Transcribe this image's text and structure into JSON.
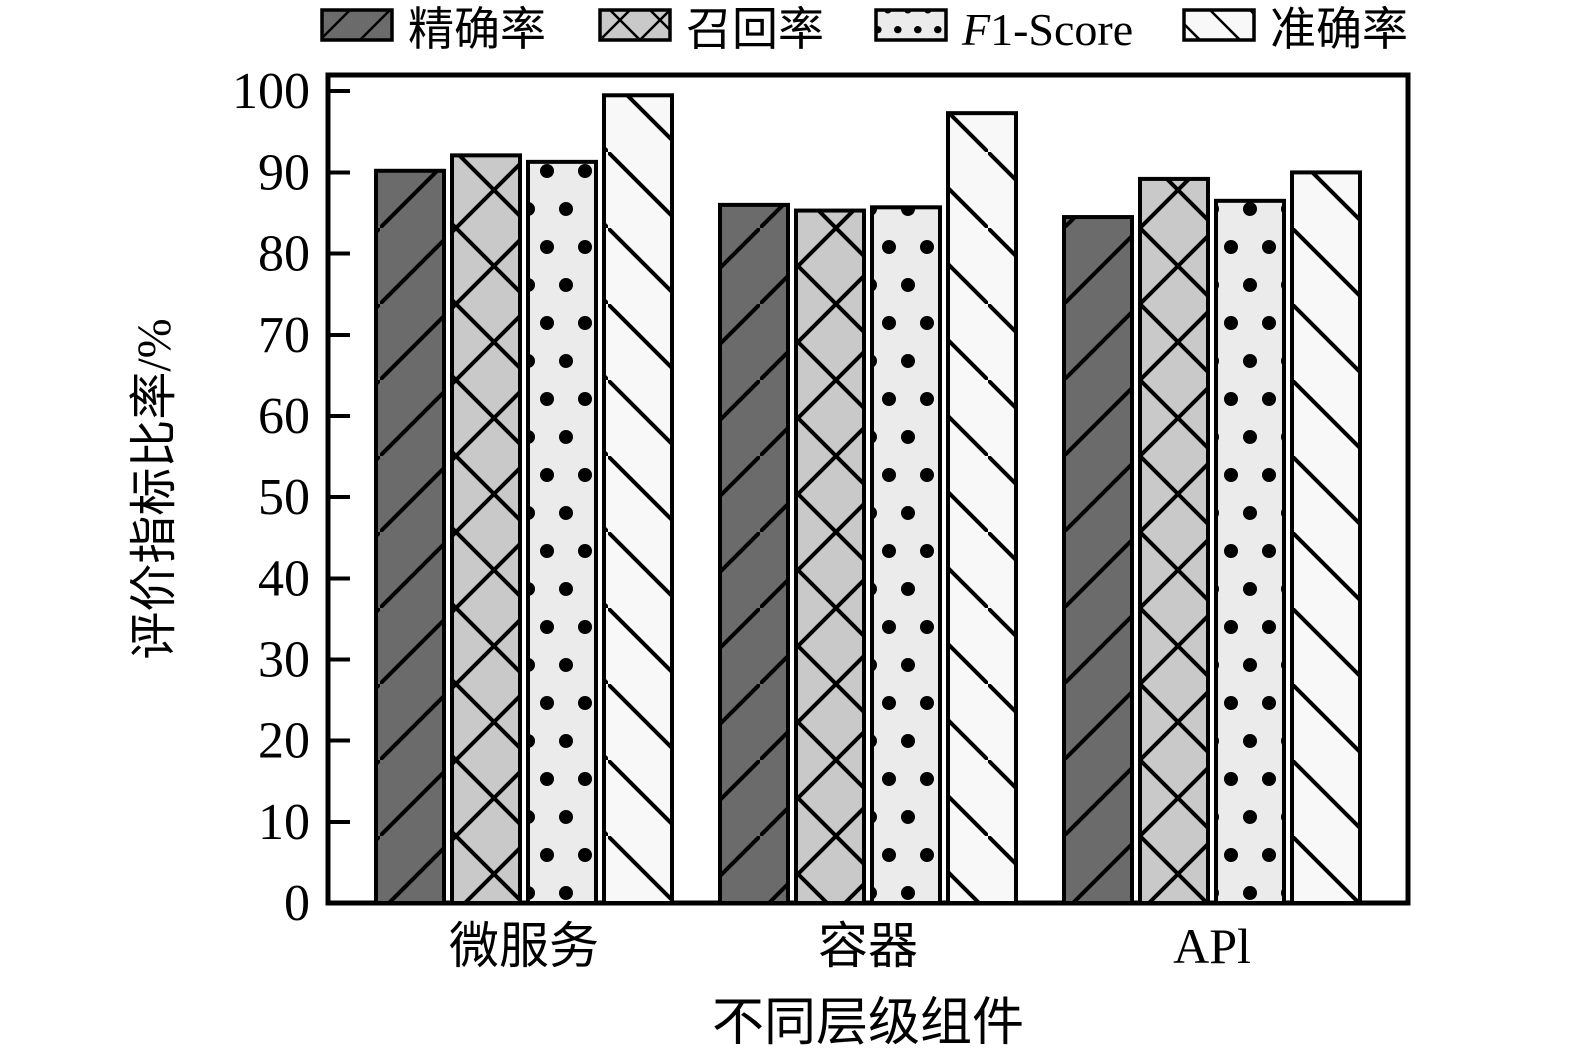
{
  "chart_data": {
    "type": "bar",
    "title": "",
    "xlabel": "不同层级组件",
    "ylabel": "评价指标比率/%",
    "categories": [
      "微服务",
      "容器",
      "APl"
    ],
    "series": [
      {
        "name": "精确率",
        "values": [
          90.2,
          86.0,
          84.5
        ],
        "fill": "#6b6b6b",
        "hatch": "diagonal-forward"
      },
      {
        "name": "召回率",
        "values": [
          92.1,
          85.3,
          89.2
        ],
        "fill": "#c9c9c9",
        "hatch": "crosshatch"
      },
      {
        "name": "F1-Score",
        "values": [
          91.3,
          85.7,
          86.5
        ],
        "fill": "#ebebeb",
        "hatch": "dots"
      },
      {
        "name": "准确率",
        "values": [
          99.5,
          97.3,
          90.0
        ],
        "fill": "#f8f8f8",
        "hatch": "diagonal-back"
      }
    ],
    "ylim": [
      0,
      102
    ],
    "yticks": [
      0,
      10,
      20,
      30,
      40,
      50,
      60,
      70,
      80,
      90,
      100
    ],
    "grid": false,
    "legend_position": "top",
    "bar_edge_color": "#000000",
    "axis_color": "#000000",
    "background_color": "#ffffff"
  }
}
